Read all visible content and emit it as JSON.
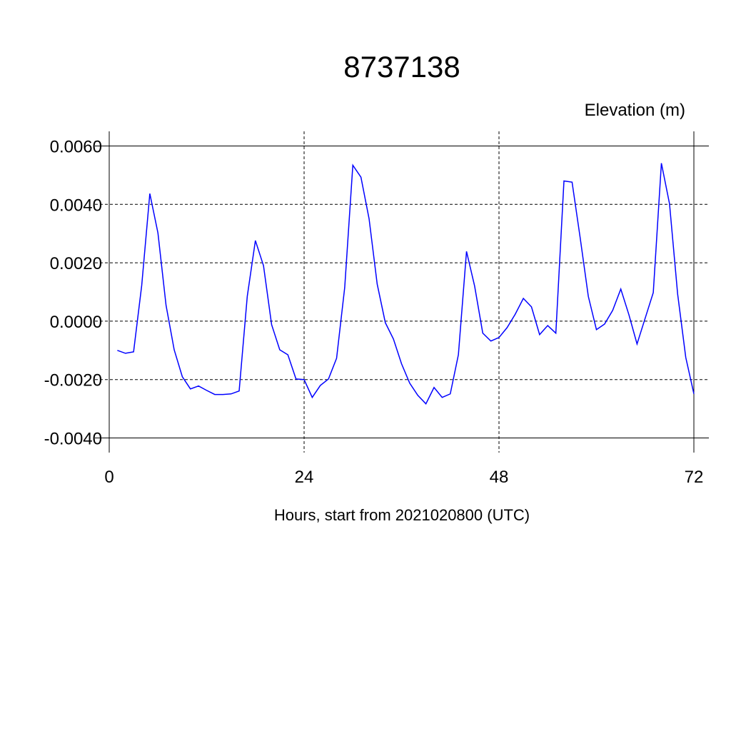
{
  "chart_data": {
    "type": "line",
    "title": "8737138",
    "y_label": "Elevation (m)",
    "x_label": "Hours, start from 2021020800 (UTC)",
    "x": [
      1,
      2,
      3,
      4,
      5,
      6,
      7,
      8,
      9,
      10,
      11,
      12,
      13,
      14,
      15,
      16,
      17,
      18,
      19,
      20,
      21,
      22,
      23,
      24,
      25,
      26,
      27,
      28,
      29,
      30,
      31,
      32,
      33,
      34,
      35,
      36,
      37,
      38,
      39,
      40,
      41,
      42,
      43,
      44,
      45,
      46,
      47,
      48,
      49,
      50,
      51,
      52,
      53,
      54,
      55,
      56,
      57,
      58,
      59,
      60,
      61,
      62,
      63,
      64,
      65,
      66,
      67,
      68,
      69,
      70,
      71,
      72
    ],
    "series": [
      {
        "color": "#0000ff",
        "values": [
          -0.001,
          -0.0011,
          -0.00105,
          0.00122,
          0.00437,
          0.00302,
          0.00054,
          -0.00098,
          -0.0019,
          -0.00232,
          -0.00222,
          -0.00237,
          -0.00251,
          -0.00251,
          -0.00249,
          -0.00239,
          0.00085,
          0.00276,
          0.0019,
          -0.00012,
          -0.00098,
          -0.00115,
          -0.00198,
          -0.002,
          -0.00261,
          -0.0022,
          -0.00198,
          -0.00127,
          0.00115,
          0.00534,
          0.00493,
          0.00351,
          0.00127,
          -5e-05,
          -0.00061,
          -0.00146,
          -0.00212,
          -0.00254,
          -0.00283,
          -0.00227,
          -0.00261,
          -0.00249,
          -0.00115,
          0.00239,
          0.0012,
          -0.00041,
          -0.00068,
          -0.00056,
          -0.00022,
          0.00024,
          0.00078,
          0.00049,
          -0.00046,
          -0.00015,
          -0.00041,
          0.0048,
          0.00476,
          0.00285,
          0.00085,
          -0.00029,
          -0.0001,
          0.00037,
          0.0011,
          0.00022,
          -0.00078,
          0.0001,
          0.00098,
          0.00541,
          0.00402,
          0.00093,
          -0.00124,
          -0.00249
        ]
      }
    ],
    "xlim": [
      0,
      72
    ],
    "xticks": [
      0,
      24,
      48,
      72
    ],
    "ylim": [
      -0.0045,
      0.0065
    ],
    "yticks": [
      {
        "value": -0.004,
        "label": "-0.0040"
      },
      {
        "value": -0.002,
        "label": "-0.0020"
      },
      {
        "value": 0,
        "label": "0.0000"
      },
      {
        "value": 0.002,
        "label": "0.0020"
      },
      {
        "value": 0.004,
        "label": "0.0040"
      },
      {
        "value": 0.006,
        "label": "0.0060"
      }
    ],
    "grid": true
  }
}
